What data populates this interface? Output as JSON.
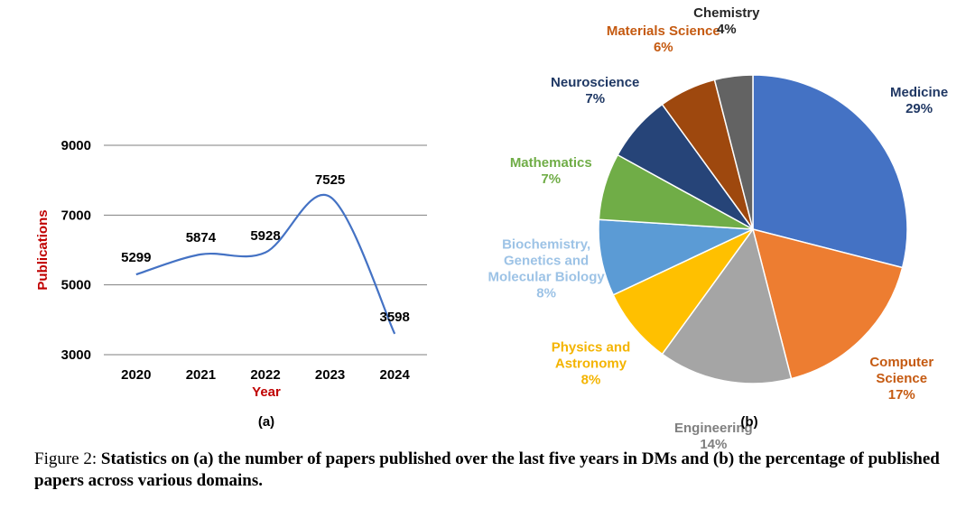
{
  "chart_data": [
    {
      "type": "line",
      "panel_label": "(a)",
      "xlabel": "Year",
      "ylabel": "Publications",
      "x": [
        "2020",
        "2021",
        "2022",
        "2023",
        "2024"
      ],
      "values": [
        5299,
        5874,
        5928,
        7525,
        3598
      ],
      "data_labels": [
        "5299",
        "5874",
        "5928",
        "7525",
        "3598"
      ],
      "yticks": [
        "3000",
        "5000",
        "7000",
        "9000"
      ],
      "ylim": [
        3000,
        9000
      ],
      "grid": "horizontal",
      "colors": {
        "line": "#4472c4",
        "axis_label": "#c00000"
      }
    },
    {
      "type": "pie",
      "panel_label": "(b)",
      "slices": [
        {
          "label": [
            "Medicine"
          ],
          "pct": "29%",
          "value": 29,
          "color": "#4472c4",
          "label_color": "#203864"
        },
        {
          "label": [
            "Computer",
            "Science"
          ],
          "pct": "17%",
          "value": 17,
          "color": "#ed7d31",
          "label_color": "#c55a11"
        },
        {
          "label": [
            "Engineering"
          ],
          "pct": "14%",
          "value": 14,
          "color": "#a5a5a5",
          "label_color": "#7f7f7f"
        },
        {
          "label": [
            "Physics and",
            "Astronomy"
          ],
          "pct": "8%",
          "value": 8,
          "color": "#ffc000",
          "label_color": "#f4b400"
        },
        {
          "label": [
            "Biochemistry,",
            "Genetics and",
            "Molecular Biology"
          ],
          "pct": "8%",
          "value": 8,
          "color": "#5b9bd5",
          "label_color": "#9dc3e6"
        },
        {
          "label": [
            "Mathematics"
          ],
          "pct": "7%",
          "value": 7,
          "color": "#70ad47",
          "label_color": "#70ad47"
        },
        {
          "label": [
            "Neuroscience"
          ],
          "pct": "7%",
          "value": 7,
          "color": "#264478",
          "label_color": "#1f3864"
        },
        {
          "label": [
            "Materials Science"
          ],
          "pct": "6%",
          "value": 6,
          "color": "#9e480e",
          "label_color": "#c55a11"
        },
        {
          "label": [
            "Chemistry"
          ],
          "pct": "4%",
          "value": 4,
          "color": "#636363",
          "label_color": "#262626"
        }
      ]
    }
  ],
  "caption": {
    "prefix": "Figure 2: ",
    "text": "Statistics on (a) the number of papers published over the last five years in DMs and (b) the percentage of published papers across various domains."
  }
}
